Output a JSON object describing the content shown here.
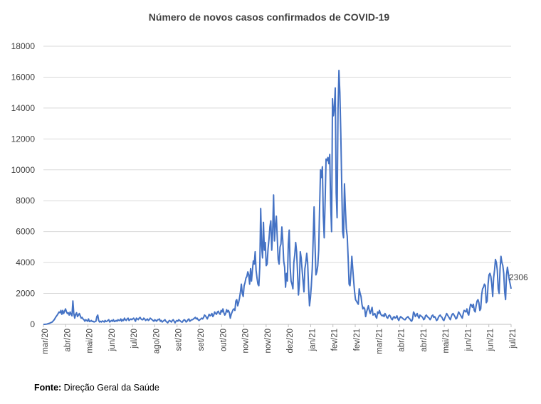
{
  "chart_data": {
    "type": "line",
    "title": "Número de novos casos confirmados de COVID-19",
    "xlabel": "",
    "ylabel": "",
    "ylim": [
      0,
      18000
    ],
    "yticks": [
      0,
      2000,
      4000,
      6000,
      8000,
      10000,
      12000,
      14000,
      16000,
      18000
    ],
    "x_tick_labels": [
      "mar/20",
      "abr/20",
      "mai/20",
      "jun/20",
      "jul/20",
      "ago/20",
      "set/20",
      "set/20",
      "out/20",
      "nov/20",
      "nov/20",
      "dez/20",
      "jan/21",
      "fev/21",
      "fev/21",
      "mar/21",
      "abr/21",
      "abr/21",
      "mai/21",
      "jun/21",
      "jun/21",
      "jul/21"
    ],
    "last_value_label": "2306",
    "series": [
      {
        "name": "Novos casos confirmados",
        "color": "#4472c4",
        "values": [
          0,
          2,
          5,
          10,
          20,
          40,
          60,
          80,
          110,
          130,
          180,
          250,
          320,
          430,
          520,
          600,
          700,
          800,
          750,
          900,
          650,
          900,
          700,
          850,
          1000,
          820,
          700,
          750,
          600,
          800,
          650,
          550,
          1516,
          700,
          400,
          650,
          750,
          500,
          600,
          700,
          550,
          400,
          450,
          350,
          300,
          200,
          300,
          250,
          200,
          350,
          180,
          200,
          250,
          180,
          200,
          150,
          180,
          200,
          500,
          600,
          250,
          150,
          200,
          150,
          220,
          200,
          150,
          250,
          180,
          200,
          250,
          300,
          150,
          200,
          250,
          200,
          300,
          180,
          200,
          250,
          200,
          300,
          250,
          250,
          350,
          200,
          300,
          250,
          400,
          300,
          250,
          350,
          400,
          250,
          300,
          350,
          300,
          350,
          400,
          300,
          200,
          400,
          350,
          300,
          400,
          450,
          350,
          300,
          300,
          400,
          350,
          250,
          300,
          350,
          250,
          300,
          400,
          350,
          300,
          250,
          200,
          300,
          250,
          200,
          300,
          300,
          350,
          200,
          250,
          150,
          200,
          250,
          300,
          200,
          150,
          100,
          200,
          250,
          200,
          150,
          250,
          300,
          200,
          100,
          200,
          250,
          200,
          300,
          250,
          200,
          150,
          150,
          250,
          300,
          250,
          150,
          200,
          300,
          350,
          200,
          250,
          300,
          300,
          350,
          400,
          450,
          350,
          400,
          300,
          250,
          300,
          350,
          400,
          350,
          450,
          600,
          550,
          450,
          350,
          500,
          650,
          550,
          600,
          700,
          500,
          600,
          800,
          700,
          650,
          800,
          850,
          700,
          650,
          900,
          800,
          1000,
          750,
          600,
          700,
          950,
          800,
          900,
          750,
          400,
          650,
          800,
          950,
          1000,
          900,
          1500,
          1600,
          1200,
          1400,
          1700,
          2100,
          2600,
          2000,
          1800,
          2500,
          2700,
          3000,
          3100,
          3400,
          3200,
          2600,
          3600,
          2800,
          3500,
          4100,
          3900,
          4700,
          3500,
          3000,
          2600,
          2500,
          3700,
          7500,
          5100,
          4300,
          6600,
          4800,
          5300,
          3800,
          3900,
          4900,
          5500,
          6300,
          6700,
          4800,
          6000,
          8371,
          5400,
          6400,
          7000,
          5600,
          4200,
          3900,
          5000,
          5200,
          6300,
          5400,
          4100,
          3700,
          2400,
          3300,
          2800,
          5200,
          6100,
          3700,
          2800,
          2600,
          2300,
          4000,
          4500,
          5300,
          4700,
          3400,
          1900,
          2600,
          4700,
          4300,
          3500,
          2800,
          2100,
          3600,
          4000,
          4600,
          4000,
          2400,
          1200,
          1700,
          2500,
          3600,
          5500,
          7600,
          5200,
          3200,
          3400,
          3800,
          4800,
          7600,
          10000,
          9500,
          10200,
          7000,
          5600,
          8000,
          10700,
          10600,
          10800,
          10400,
          11000,
          7800,
          6000,
          14600,
          13500,
          14000,
          15300,
          8500,
          6900,
          13900,
          16432,
          15000,
          12400,
          9100,
          6000,
          5600,
          9100,
          7500,
          6200,
          5700,
          4300,
          2600,
          2500,
          3300,
          4400,
          3600,
          2800,
          2100,
          1600,
          1500,
          1400,
          1300,
          2300,
          2000,
          1800,
          1300,
          1000,
          1100,
          1000,
          500,
          800,
          1000,
          1200,
          900,
          700,
          900,
          1100,
          600,
          650,
          700,
          500,
          400,
          800,
          700,
          900,
          700,
          600,
          550,
          600,
          500,
          700,
          600,
          450,
          400,
          550,
          600,
          500,
          350,
          300,
          450,
          500,
          400,
          450,
          550,
          350,
          250,
          400,
          500,
          450,
          400,
          350,
          300,
          300,
          400,
          450,
          500,
          400,
          350,
          250,
          200,
          350,
          800,
          700,
          500,
          600,
          700,
          500,
          400,
          600,
          550,
          500,
          450,
          300,
          350,
          550,
          600,
          500,
          450,
          400,
          300,
          400,
          550,
          600,
          450,
          500,
          400,
          250,
          300,
          450,
          550,
          600,
          500,
          450,
          300,
          250,
          400,
          550,
          700,
          600,
          500,
          400,
          300,
          500,
          650,
          700,
          600,
          500,
          350,
          400,
          600,
          800,
          700,
          600,
          500,
          400,
          700,
          900,
          850,
          800,
          1000,
          700,
          600,
          1000,
          1300,
          1250,
          1100,
          1300,
          900,
          800,
          1200,
          1500,
          1600,
          1400,
          900,
          1000,
          1900,
          2300,
          2400,
          2600,
          2500,
          1400,
          1500,
          2600,
          3200,
          3300,
          3100,
          2600,
          1800,
          3000,
          3500,
          4200,
          4000,
          3500,
          2300,
          2000,
          3600,
          4400,
          4000,
          3800,
          3300,
          2100,
          1600,
          3200,
          3700,
          3300,
          2900,
          2600,
          2306
        ]
      }
    ]
  },
  "footer": {
    "source_label": "Fonte:",
    "source_text": " Direção Geral da Saúde"
  }
}
